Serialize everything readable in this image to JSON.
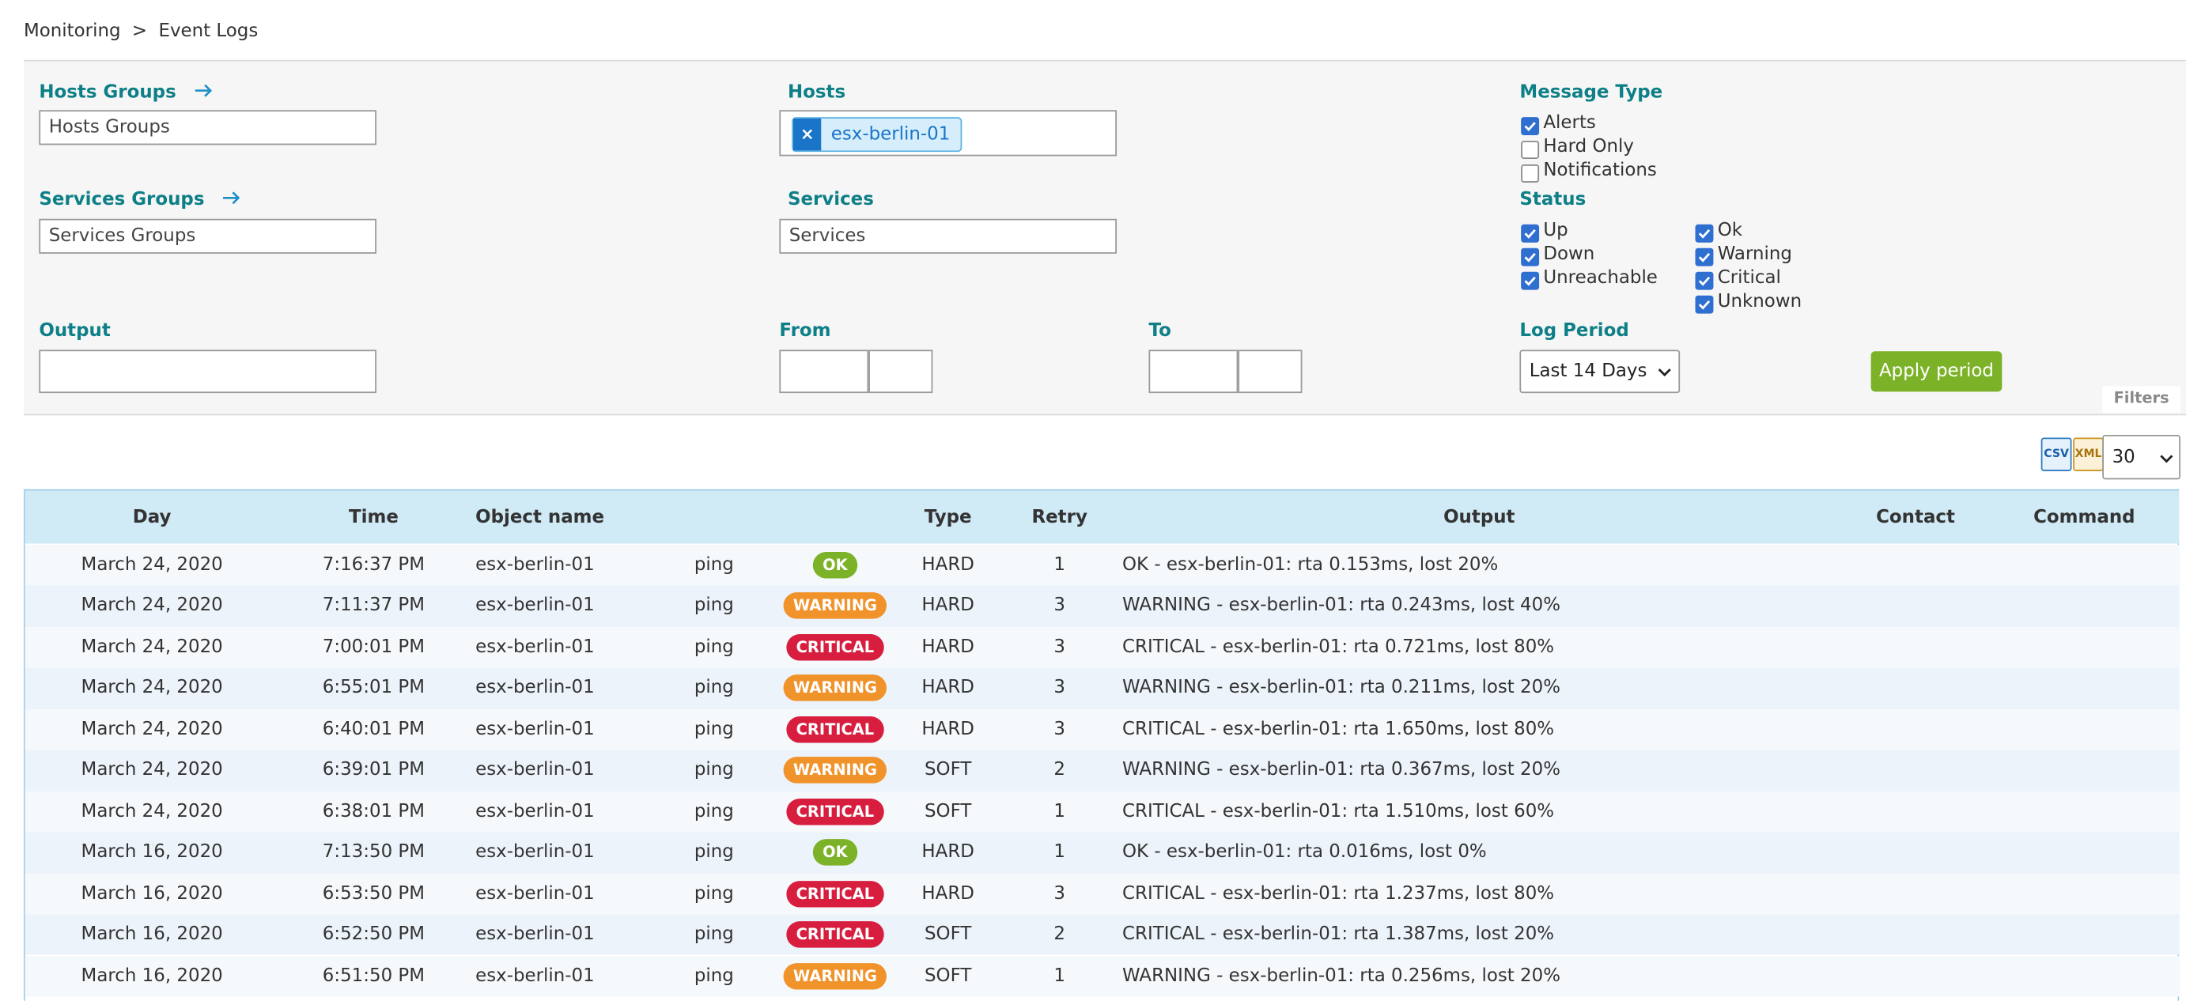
{
  "breadcrumb": {
    "items": [
      "Monitoring",
      "Event Logs"
    ],
    "separator": ">"
  },
  "filters": {
    "hosts_groups": {
      "label": "Hosts Groups",
      "placeholder": "Hosts Groups"
    },
    "hosts": {
      "label": "Hosts",
      "chip": "esx-berlin-01",
      "chip_remove": "×"
    },
    "message_type": {
      "label": "Message Type",
      "options": [
        {
          "label": "Alerts",
          "checked": true
        },
        {
          "label": "Hard Only",
          "checked": false
        },
        {
          "label": "Notifications",
          "checked": false
        }
      ]
    },
    "services_groups": {
      "label": "Services Groups",
      "placeholder": "Services Groups"
    },
    "services": {
      "label": "Services",
      "placeholder": "Services"
    },
    "status": {
      "label": "Status",
      "host_options": [
        {
          "label": "Up",
          "checked": true
        },
        {
          "label": "Down",
          "checked": true
        },
        {
          "label": "Unreachable",
          "checked": true
        }
      ],
      "service_options": [
        {
          "label": "Ok",
          "checked": true
        },
        {
          "label": "Warning",
          "checked": true
        },
        {
          "label": "Critical",
          "checked": true
        },
        {
          "label": "Unknown",
          "checked": true
        }
      ]
    },
    "output": {
      "label": "Output"
    },
    "from": {
      "label": "From"
    },
    "to": {
      "label": "To"
    },
    "log_period": {
      "label": "Log Period",
      "value": "Last 14 Days"
    },
    "apply_button": "Apply period",
    "tab": "Filters"
  },
  "export": {
    "csv": "CSV",
    "xml": "XML",
    "page_size": "30"
  },
  "table": {
    "headers": [
      "Day",
      "Time",
      "Object name",
      "Type",
      "Retry",
      "Output",
      "Contact",
      "Command"
    ],
    "rows": [
      [
        "March 24, 2020",
        "7:16:37 PM",
        "esx-berlin-01",
        "ping",
        "OK",
        "HARD",
        "1",
        "OK - esx-berlin-01: rta 0.153ms, lost 20%"
      ],
      [
        "March 24, 2020",
        "7:11:37 PM",
        "esx-berlin-01",
        "ping",
        "WARNING",
        "HARD",
        "3",
        "WARNING - esx-berlin-01: rta 0.243ms, lost 40%"
      ],
      [
        "March 24, 2020",
        "7:00:01 PM",
        "esx-berlin-01",
        "ping",
        "CRITICAL",
        "HARD",
        "3",
        "CRITICAL - esx-berlin-01: rta 0.721ms, lost 80%"
      ],
      [
        "March 24, 2020",
        "6:55:01 PM",
        "esx-berlin-01",
        "ping",
        "WARNING",
        "HARD",
        "3",
        "WARNING - esx-berlin-01: rta 0.211ms, lost 20%"
      ],
      [
        "March 24, 2020",
        "6:40:01 PM",
        "esx-berlin-01",
        "ping",
        "CRITICAL",
        "HARD",
        "3",
        "CRITICAL - esx-berlin-01: rta 1.650ms, lost 80%"
      ],
      [
        "March 24, 2020",
        "6:39:01 PM",
        "esx-berlin-01",
        "ping",
        "WARNING",
        "SOFT",
        "2",
        "WARNING - esx-berlin-01: rta 0.367ms, lost 20%"
      ],
      [
        "March 24, 2020",
        "6:38:01 PM",
        "esx-berlin-01",
        "ping",
        "CRITICAL",
        "SOFT",
        "1",
        "CRITICAL - esx-berlin-01: rta 1.510ms, lost 60%"
      ],
      [
        "March 16, 2020",
        "7:13:50 PM",
        "esx-berlin-01",
        "ping",
        "OK",
        "HARD",
        "1",
        "OK - esx-berlin-01: rta 0.016ms, lost 0%"
      ],
      [
        "March 16, 2020",
        "6:53:50 PM",
        "esx-berlin-01",
        "ping",
        "CRITICAL",
        "HARD",
        "3",
        "CRITICAL - esx-berlin-01: rta 1.237ms, lost 80%"
      ],
      [
        "March 16, 2020",
        "6:52:50 PM",
        "esx-berlin-01",
        "ping",
        "CRITICAL",
        "SOFT",
        "2",
        "CRITICAL - esx-berlin-01: rta 1.387ms, lost 20%"
      ],
      [
        "March 16, 2020",
        "6:51:50 PM",
        "esx-berlin-01",
        "ping",
        "WARNING",
        "SOFT",
        "1",
        "WARNING - esx-berlin-01: rta 0.256ms, lost 20%"
      ]
    ]
  }
}
